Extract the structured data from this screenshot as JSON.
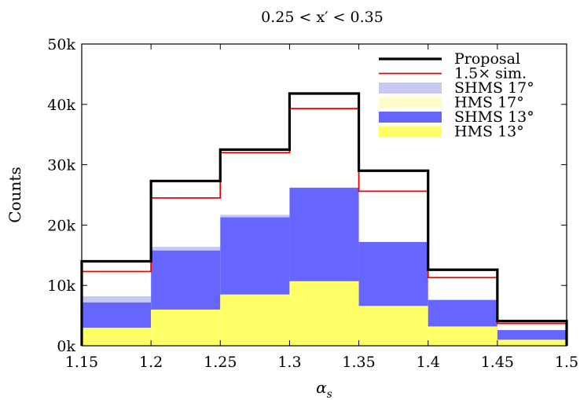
{
  "chart_data": {
    "type": "bar",
    "title": "0.25 < x′ < 0.35",
    "xlabel": "α",
    "xlabel_sub": "s",
    "ylabel": "Counts",
    "xlim": [
      1.15,
      1.5
    ],
    "ylim": [
      0,
      50000
    ],
    "bin_edges": [
      1.15,
      1.2,
      1.25,
      1.3,
      1.35,
      1.4,
      1.45,
      1.5
    ],
    "x_tick_values": [
      1.15,
      1.2,
      1.25,
      1.3,
      1.35,
      1.4,
      1.45,
      1.5
    ],
    "x_tick_labels": [
      "1.15",
      "1.2",
      "1.25",
      "1.3",
      "1.35",
      "1.4",
      "1.45",
      "1.5"
    ],
    "y_tick_values": [
      0,
      10000,
      20000,
      30000,
      40000,
      50000
    ],
    "y_tick_labels": [
      "0k",
      "10k",
      "20k",
      "30k",
      "40k",
      "50k"
    ],
    "legend_position": "top-right",
    "series": [
      {
        "name": "Proposal",
        "style": "step",
        "color": "#000000",
        "values": [
          14000,
          27300,
          32500,
          41800,
          29000,
          12600,
          4100
        ]
      },
      {
        "name": "1.5× sim.",
        "style": "step",
        "color": "#ee0000",
        "values": [
          12300,
          24500,
          32000,
          39300,
          25600,
          11300,
          3700
        ]
      },
      {
        "name": "SHMS 17°",
        "style": "stacked-fill",
        "color": "#c8c8f5",
        "values": [
          1000,
          600,
          400,
          0,
          0,
          0,
          0
        ]
      },
      {
        "name": "HMS 17°",
        "style": "stacked-fill",
        "color": "#fdfdc8",
        "values": [
          0,
          0,
          0,
          0,
          0,
          0,
          0
        ]
      },
      {
        "name": "SHMS 13°",
        "style": "stacked-fill",
        "color": "#6666ff",
        "values": [
          4200,
          9800,
          12800,
          15500,
          10600,
          4400,
          1600
        ]
      },
      {
        "name": "HMS 13°",
        "style": "stacked-fill",
        "color": "#ffff66",
        "values": [
          3000,
          6000,
          8500,
          10700,
          6600,
          3200,
          1000
        ]
      }
    ]
  }
}
